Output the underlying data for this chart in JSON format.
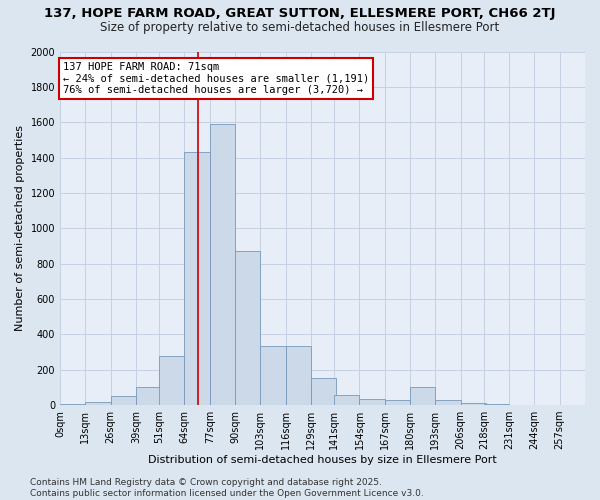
{
  "title1": "137, HOPE FARM ROAD, GREAT SUTTON, ELLESMERE PORT, CH66 2TJ",
  "title2": "Size of property relative to semi-detached houses in Ellesmere Port",
  "xlabel": "Distribution of semi-detached houses by size in Ellesmere Port",
  "ylabel": "Number of semi-detached properties",
  "footer": "Contains HM Land Registry data © Crown copyright and database right 2025.\nContains public sector information licensed under the Open Government Licence v3.0.",
  "bin_labels": [
    "0sqm",
    "13sqm",
    "26sqm",
    "39sqm",
    "51sqm",
    "64sqm",
    "77sqm",
    "90sqm",
    "103sqm",
    "116sqm",
    "129sqm",
    "141sqm",
    "154sqm",
    "167sqm",
    "180sqm",
    "193sqm",
    "206sqm",
    "218sqm",
    "231sqm",
    "244sqm",
    "257sqm"
  ],
  "bin_edges": [
    0,
    13,
    26,
    39,
    51,
    64,
    77,
    90,
    103,
    116,
    129,
    141,
    154,
    167,
    180,
    193,
    206,
    218,
    231,
    244,
    257
  ],
  "bar_heights": [
    5,
    20,
    50,
    100,
    280,
    1430,
    1590,
    870,
    335,
    335,
    155,
    55,
    35,
    30,
    100,
    30,
    10,
    5,
    2,
    1,
    0
  ],
  "bar_color": "#ccd9e8",
  "bar_edge_color": "#7799bb",
  "property_size": 71,
  "vline_color": "#cc0000",
  "annotation_box_color": "#cc0000",
  "annotation_line1": "137 HOPE FARM ROAD: 71sqm",
  "annotation_line2": "← 24% of semi-detached houses are smaller (1,191)",
  "annotation_line3": "76% of semi-detached houses are larger (3,720) →",
  "ylim": [
    0,
    2000
  ],
  "yticks": [
    0,
    200,
    400,
    600,
    800,
    1000,
    1200,
    1400,
    1600,
    1800,
    2000
  ],
  "bg_color": "#dce6f0",
  "plot_bg_color": "#e8eef8",
  "grid_color": "#c0cce0",
  "title1_fontsize": 9.5,
  "title2_fontsize": 8.5,
  "annot_fontsize": 7.5,
  "xlabel_fontsize": 8,
  "ylabel_fontsize": 8,
  "tick_fontsize": 7,
  "footer_fontsize": 6.5
}
